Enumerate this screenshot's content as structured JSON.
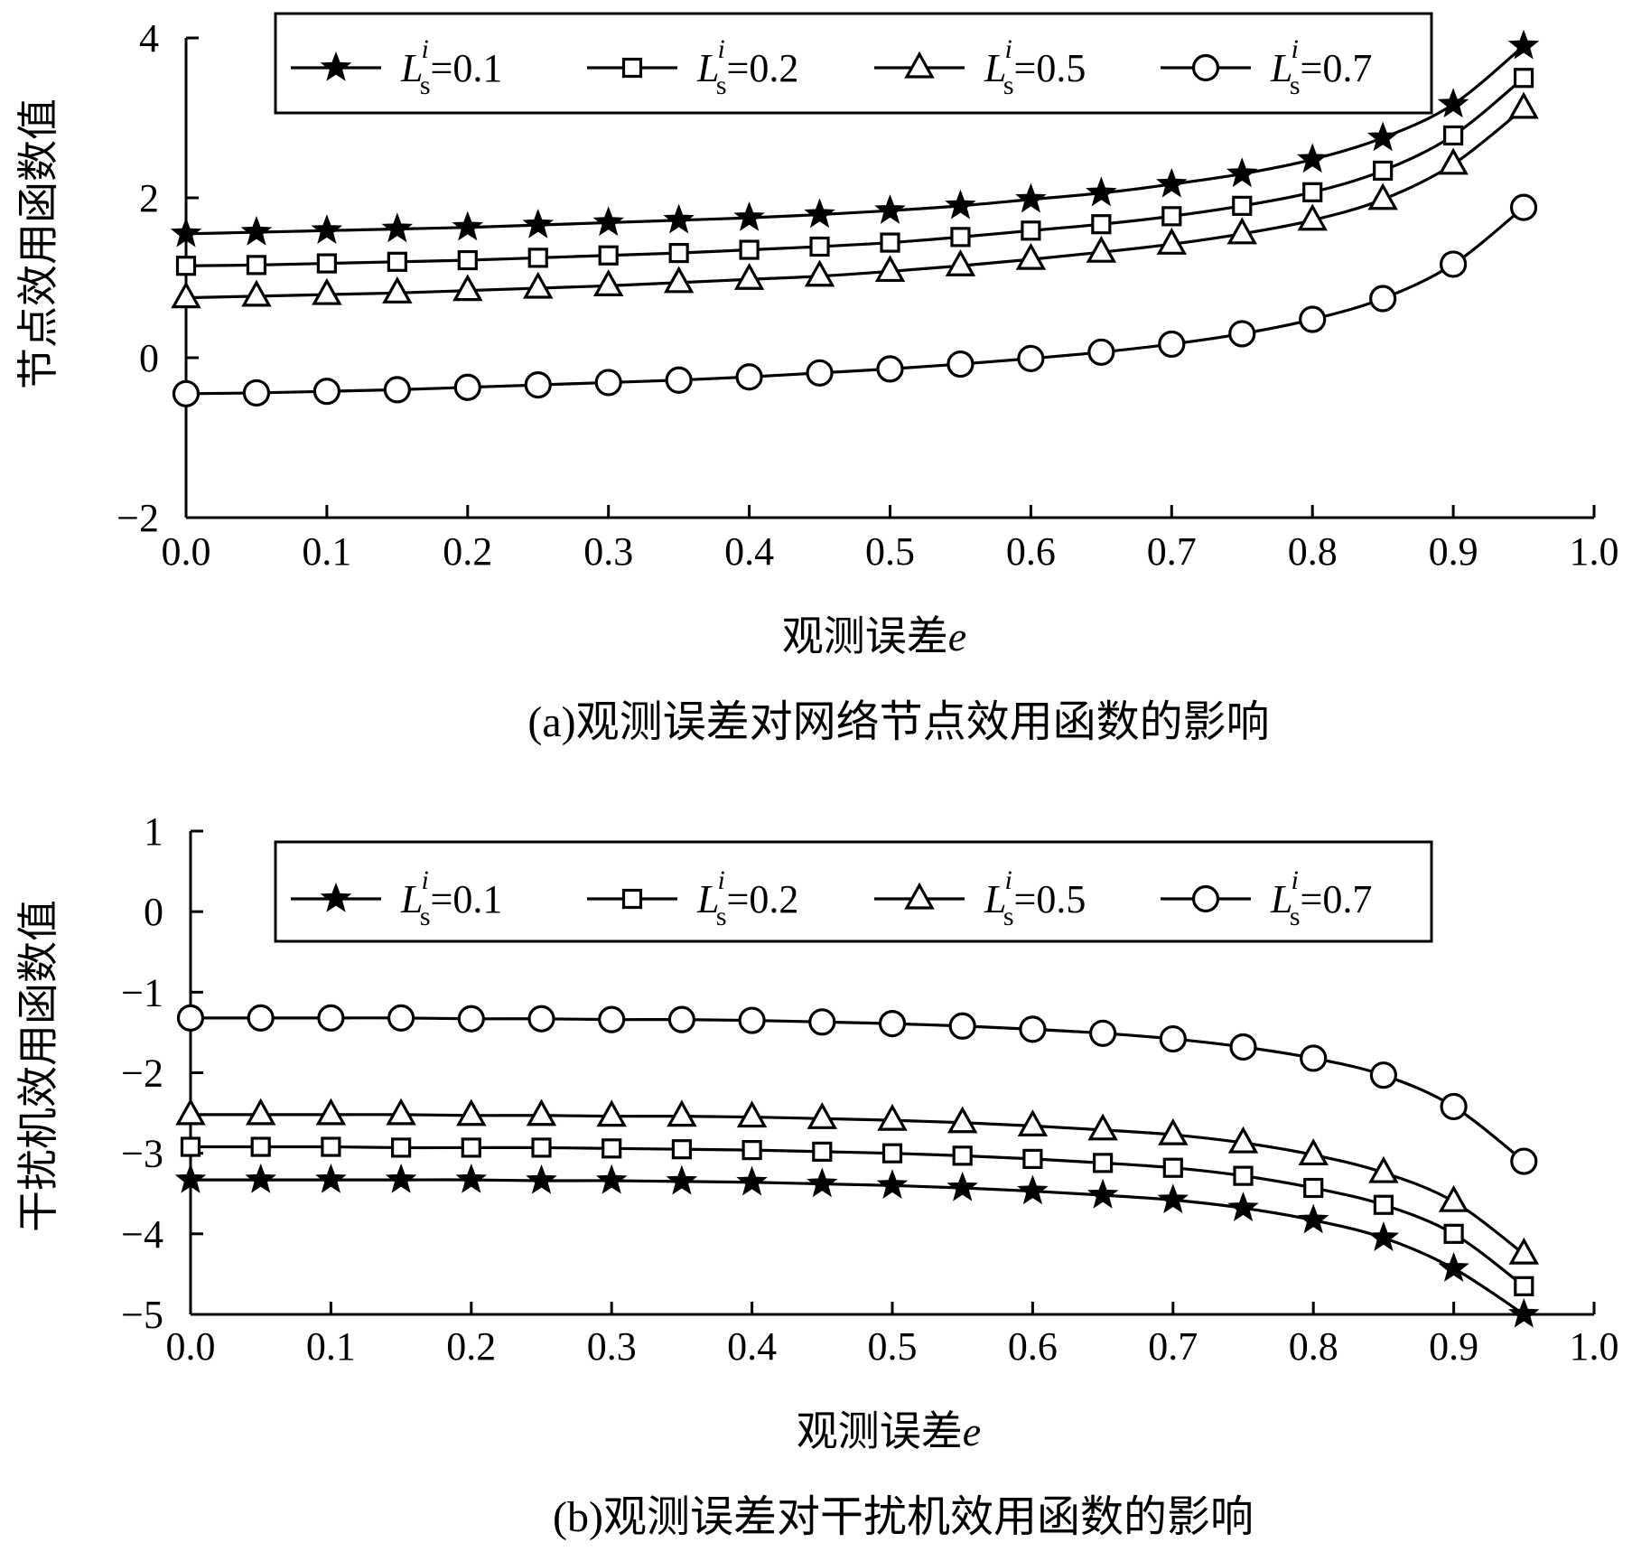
{
  "chart_data": [
    {
      "type": "line",
      "caption": "(a)观测误差对网络节点效用函数的影响",
      "xlabel": "观测误差",
      "xlabel_var": "e",
      "ylabel": "节点效用函数值",
      "xlim": [
        0.0,
        1.0
      ],
      "ylim": [
        -2,
        4
      ],
      "xticks": [
        "0.0",
        "0.1",
        "0.2",
        "0.3",
        "0.4",
        "0.5",
        "0.6",
        "0.7",
        "0.8",
        "0.9",
        "1.0"
      ],
      "yticks": [
        "−2",
        "0",
        "2",
        "4"
      ],
      "legend_position": "top",
      "x": [
        0.0,
        0.05,
        0.1,
        0.15,
        0.2,
        0.25,
        0.3,
        0.35,
        0.4,
        0.45,
        0.5,
        0.55,
        0.6,
        0.65,
        0.7,
        0.75,
        0.8,
        0.85,
        0.9,
        0.95
      ],
      "series": [
        {
          "name": "L_s^i=0.1",
          "legend": {
            "base": "L",
            "sup": "i",
            "sub": "s",
            "value": "=0.1"
          },
          "marker": "star",
          "values": [
            1.55,
            1.57,
            1.59,
            1.61,
            1.63,
            1.66,
            1.69,
            1.72,
            1.75,
            1.79,
            1.84,
            1.9,
            1.98,
            2.06,
            2.17,
            2.3,
            2.48,
            2.75,
            3.17,
            3.9
          ]
        },
        {
          "name": "L_s^i=0.2",
          "legend": {
            "base": "L",
            "sup": "i",
            "sub": "s",
            "value": "=0.2"
          },
          "marker": "square",
          "values": [
            1.15,
            1.16,
            1.18,
            1.2,
            1.22,
            1.25,
            1.28,
            1.31,
            1.35,
            1.39,
            1.44,
            1.51,
            1.59,
            1.67,
            1.77,
            1.9,
            2.07,
            2.34,
            2.78,
            3.5
          ]
        },
        {
          "name": "L_s^i=0.5",
          "legend": {
            "base": "L",
            "sup": "i",
            "sub": "s",
            "value": "=0.5"
          },
          "marker": "triangle",
          "values": [
            0.75,
            0.77,
            0.79,
            0.81,
            0.84,
            0.87,
            0.9,
            0.94,
            0.98,
            1.02,
            1.08,
            1.15,
            1.23,
            1.32,
            1.42,
            1.55,
            1.72,
            1.98,
            2.42,
            3.12
          ]
        },
        {
          "name": "L_s^i=0.7",
          "legend": {
            "base": "L",
            "sup": "i",
            "sub": "s",
            "value": "=0.7"
          },
          "marker": "circle",
          "values": [
            -0.45,
            -0.44,
            -0.42,
            -0.4,
            -0.37,
            -0.34,
            -0.31,
            -0.28,
            -0.24,
            -0.19,
            -0.14,
            -0.08,
            -0.01,
            0.07,
            0.17,
            0.3,
            0.48,
            0.74,
            1.17,
            1.88
          ]
        }
      ]
    },
    {
      "type": "line",
      "caption": "(b)观测误差对干扰机效用函数的影响",
      "xlabel": "观测误差",
      "xlabel_var": "e",
      "ylabel": "干扰机效用函数值",
      "xlim": [
        0.0,
        1.0
      ],
      "ylim": [
        -5,
        1
      ],
      "xticks": [
        "0.0",
        "0.1",
        "0.2",
        "0.3",
        "0.4",
        "0.5",
        "0.6",
        "0.7",
        "0.8",
        "0.9",
        "1.0"
      ],
      "yticks": [
        "−5",
        "−4",
        "−3",
        "−2",
        "−1",
        "0",
        "1"
      ],
      "legend_position": "top",
      "x": [
        0.0,
        0.05,
        0.1,
        0.15,
        0.2,
        0.25,
        0.3,
        0.35,
        0.4,
        0.45,
        0.5,
        0.55,
        0.6,
        0.65,
        0.7,
        0.75,
        0.8,
        0.85,
        0.9,
        0.95
      ],
      "series": [
        {
          "name": "L_s^i=0.1",
          "legend": {
            "base": "L",
            "sup": "i",
            "sub": "s",
            "value": "=0.1"
          },
          "marker": "star",
          "values": [
            -3.33,
            -3.33,
            -3.33,
            -3.33,
            -3.33,
            -3.34,
            -3.34,
            -3.35,
            -3.36,
            -3.38,
            -3.4,
            -3.43,
            -3.47,
            -3.52,
            -3.58,
            -3.68,
            -3.83,
            -4.05,
            -4.43,
            -5.0
          ]
        },
        {
          "name": "L_s^i=0.2",
          "legend": {
            "base": "L",
            "sup": "i",
            "sub": "s",
            "value": "=0.2"
          },
          "marker": "square",
          "values": [
            -2.92,
            -2.92,
            -2.92,
            -2.93,
            -2.93,
            -2.93,
            -2.94,
            -2.95,
            -2.96,
            -2.98,
            -3.0,
            -3.03,
            -3.07,
            -3.12,
            -3.18,
            -3.28,
            -3.43,
            -3.64,
            -4.0,
            -4.65
          ]
        },
        {
          "name": "L_s^i=0.5",
          "legend": {
            "base": "L",
            "sup": "i",
            "sub": "s",
            "value": "=0.5"
          },
          "marker": "triangle",
          "values": [
            -2.52,
            -2.52,
            -2.52,
            -2.52,
            -2.53,
            -2.53,
            -2.54,
            -2.54,
            -2.55,
            -2.57,
            -2.59,
            -2.62,
            -2.66,
            -2.71,
            -2.77,
            -2.87,
            -3.02,
            -3.24,
            -3.6,
            -4.25
          ]
        },
        {
          "name": "L_s^i=0.7",
          "legend": {
            "base": "L",
            "sup": "i",
            "sub": "s",
            "value": "=0.7"
          },
          "marker": "circle",
          "values": [
            -1.32,
            -1.32,
            -1.32,
            -1.32,
            -1.33,
            -1.33,
            -1.34,
            -1.34,
            -1.35,
            -1.37,
            -1.39,
            -1.42,
            -1.46,
            -1.51,
            -1.58,
            -1.68,
            -1.82,
            -2.03,
            -2.42,
            -3.1
          ]
        }
      ]
    }
  ]
}
